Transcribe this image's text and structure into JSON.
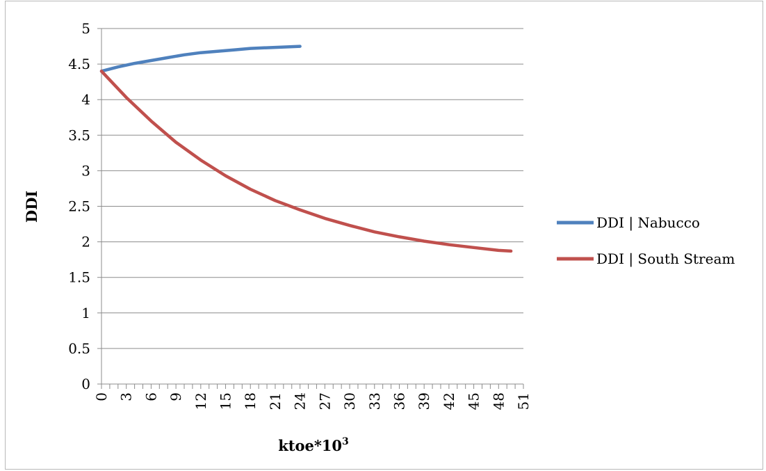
{
  "chart_data": {
    "type": "line",
    "title": "",
    "xlabel": "ktoe*10",
    "xlabel_superscript": "3",
    "ylabel": "DDI",
    "x_ticks": [
      0,
      3,
      6,
      9,
      12,
      15,
      18,
      21,
      24,
      27,
      30,
      33,
      36,
      39,
      42,
      45,
      48,
      51
    ],
    "y_ticks": [
      0,
      0.5,
      1,
      1.5,
      2,
      2.5,
      3,
      3.5,
      4,
      4.5,
      5
    ],
    "y_tick_labels": [
      "0",
      "0.5",
      "1",
      "1.5",
      "2",
      "2.5",
      "3",
      "3.5",
      "4",
      "4.5",
      "5"
    ],
    "xlim": [
      0,
      51
    ],
    "ylim": [
      0,
      5
    ],
    "grid": "horizontal",
    "legend_position": "right",
    "series": [
      {
        "name": "DDI | Nabucco",
        "color": "#4f81bd",
        "x": [
          0,
          2,
          4,
          6,
          8,
          10,
          12,
          14,
          16,
          18,
          20,
          22,
          24
        ],
        "y": [
          4.4,
          4.46,
          4.51,
          4.55,
          4.59,
          4.63,
          4.66,
          4.68,
          4.7,
          4.72,
          4.73,
          4.74,
          4.75
        ]
      },
      {
        "name": "DDI | South Stream",
        "color": "#c0504d",
        "x": [
          0,
          3,
          6,
          9,
          12,
          15,
          18,
          21,
          24,
          27,
          30,
          33,
          36,
          39,
          42,
          45,
          48,
          49.5
        ],
        "y": [
          4.4,
          4.03,
          3.7,
          3.4,
          3.15,
          2.93,
          2.74,
          2.58,
          2.45,
          2.33,
          2.23,
          2.14,
          2.07,
          2.01,
          1.96,
          1.92,
          1.88,
          1.87
        ]
      }
    ]
  }
}
